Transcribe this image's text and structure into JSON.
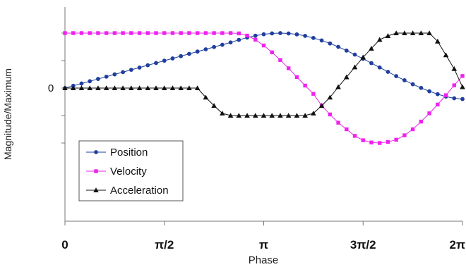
{
  "chart_data": {
    "type": "line",
    "xlabel": "Phase",
    "ylabel": "Magnitude/Maximum",
    "xlim": [
      0,
      6.2832
    ],
    "ylim": [
      -1.25,
      1.1
    ],
    "x_ticks": [
      {
        "value": 0,
        "label": "0"
      },
      {
        "value": 1.5708,
        "label": "π/2"
      },
      {
        "value": 3.1416,
        "label": "π"
      },
      {
        "value": 4.7124,
        "label": "3π/2"
      },
      {
        "value": 6.2832,
        "label": "2π"
      }
    ],
    "y_ticks": [
      {
        "value": 1.0,
        "label": ""
      },
      {
        "value": 0.5,
        "label": ""
      },
      {
        "value": 0,
        "label": "0"
      },
      {
        "value": -0.5,
        "label": ""
      },
      {
        "value": -1.0,
        "label": ""
      }
    ],
    "grid": false,
    "legend_position": "bottom-left",
    "series": [
      {
        "name": "Position",
        "color": "#1f3f9f",
        "marker": "circle",
        "x": [
          0,
          0.1309,
          0.2618,
          0.3927,
          0.5236,
          0.6545,
          0.7854,
          0.9163,
          1.0472,
          1.1781,
          1.309,
          1.4399,
          1.5708,
          1.7017,
          1.8326,
          1.9635,
          2.0944,
          2.2253,
          2.3562,
          2.4871,
          2.618,
          2.7489,
          2.8798,
          3.0107,
          3.1416,
          3.2725,
          3.4034,
          3.5343,
          3.6652,
          3.7961,
          3.927,
          4.0579,
          4.1888,
          4.3197,
          4.4506,
          4.5815,
          4.7124,
          4.8433,
          4.9742,
          5.1051,
          5.236,
          5.3669,
          5.4978,
          5.6287,
          5.7596,
          5.8905,
          6.0214,
          6.1523,
          6.2832
        ],
        "y": [
          0,
          0.041,
          0.083,
          0.124,
          0.166,
          0.207,
          0.249,
          0.29,
          0.332,
          0.373,
          0.415,
          0.456,
          0.498,
          0.539,
          0.581,
          0.622,
          0.664,
          0.705,
          0.747,
          0.788,
          0.83,
          0.877,
          0.919,
          0.953,
          0.979,
          0.995,
          1.0,
          0.994,
          0.977,
          0.95,
          0.912,
          0.866,
          0.812,
          0.75,
          0.682,
          0.609,
          0.533,
          0.454,
          0.375,
          0.295,
          0.217,
          0.142,
          0.07,
          0.003,
          -0.058,
          -0.111,
          -0.155,
          -0.186,
          -0.2
        ]
      },
      {
        "name": "Velocity",
        "color": "#ee22ee",
        "marker": "square",
        "x": [
          0,
          0.1309,
          0.2618,
          0.3927,
          0.5236,
          0.6545,
          0.7854,
          0.9163,
          1.0472,
          1.1781,
          1.309,
          1.4399,
          1.5708,
          1.7017,
          1.8326,
          1.9635,
          2.0944,
          2.2253,
          2.3562,
          2.4871,
          2.618,
          2.7489,
          2.8798,
          3.0107,
          3.1416,
          3.2725,
          3.4034,
          3.5343,
          3.6652,
          3.7961,
          3.927,
          4.0579,
          4.1888,
          4.3197,
          4.4506,
          4.5815,
          4.7124,
          4.8433,
          4.9742,
          5.1051,
          5.236,
          5.3669,
          5.4978,
          5.6287,
          5.7596,
          5.8905,
          6.0214,
          6.1523,
          6.2832
        ],
        "y": [
          1.0,
          1.0,
          1.0,
          1.0,
          1.0,
          1.0,
          1.0,
          1.0,
          1.0,
          1.0,
          1.0,
          1.0,
          1.0,
          1.0,
          1.0,
          1.0,
          1.0,
          1.0,
          1.0,
          1.0,
          1.0,
          0.995,
          0.955,
          0.88,
          0.775,
          0.65,
          0.51,
          0.36,
          0.2,
          0.045,
          -0.105,
          -0.32,
          -0.48,
          -0.63,
          -0.75,
          -0.87,
          -0.95,
          -0.99,
          -1.0,
          -0.98,
          -0.94,
          -0.86,
          -0.75,
          -0.61,
          -0.46,
          -0.3,
          -0.13,
          0.05,
          0.22
        ]
      },
      {
        "name": "Acceleration",
        "color": "#111111",
        "marker": "triangle",
        "x": [
          0,
          0.1309,
          0.2618,
          0.3927,
          0.5236,
          0.6545,
          0.7854,
          0.9163,
          1.0472,
          1.1781,
          1.309,
          1.4399,
          1.5708,
          1.7017,
          1.8326,
          1.9635,
          2.0944,
          2.2253,
          2.3562,
          2.4871,
          2.618,
          2.7489,
          2.8798,
          3.0107,
          3.1416,
          3.2725,
          3.4034,
          3.5343,
          3.6652,
          3.7961,
          3.927,
          4.0579,
          4.1888,
          4.3197,
          4.4506,
          4.5815,
          4.7124,
          4.8433,
          4.9742,
          5.1051,
          5.236,
          5.3669,
          5.4978,
          5.6287,
          5.7596,
          5.8905,
          6.0214,
          6.1523,
          6.2832
        ],
        "y": [
          0,
          0,
          0,
          0,
          0,
          0,
          0,
          0,
          0,
          0,
          0,
          0,
          0,
          0,
          0,
          0,
          0,
          -0.17,
          -0.32,
          -0.46,
          -0.5,
          -0.5,
          -0.5,
          -0.5,
          -0.5,
          -0.5,
          -0.5,
          -0.5,
          -0.5,
          -0.5,
          -0.46,
          -0.32,
          -0.17,
          0.02,
          0.2,
          0.38,
          0.56,
          0.72,
          0.88,
          0.95,
          1.0,
          1.0,
          1.0,
          1.0,
          1.0,
          0.85,
          0.6,
          0.35,
          0.02
        ]
      }
    ]
  }
}
